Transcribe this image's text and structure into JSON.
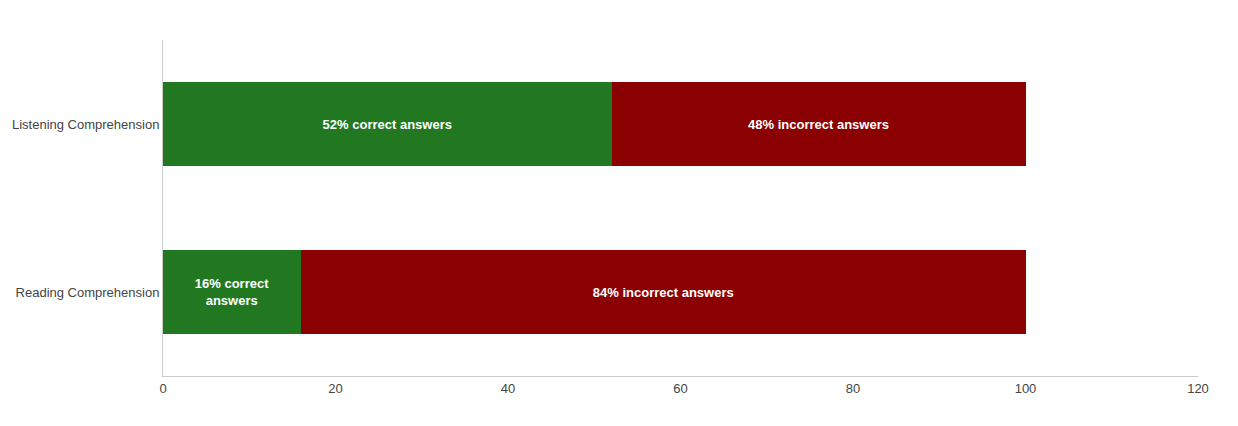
{
  "chart_data": {
    "type": "bar",
    "orientation": "horizontal",
    "stacked": true,
    "categories": [
      "Listening Comprehension",
      "Reading Comprehension"
    ],
    "series": [
      {
        "color": "#217821",
        "values": [
          52,
          16
        ],
        "value_labels": [
          "52% correct answers",
          "16% correct\nanswers"
        ]
      },
      {
        "color": "#8B0000",
        "values": [
          48,
          84
        ],
        "value_labels": [
          "48% incorrect answers",
          "84% incorrect answers"
        ]
      }
    ],
    "xlim": [
      0,
      120
    ],
    "xticks": [
      0,
      20,
      40,
      60,
      80,
      100,
      120
    ],
    "grid": false
  }
}
